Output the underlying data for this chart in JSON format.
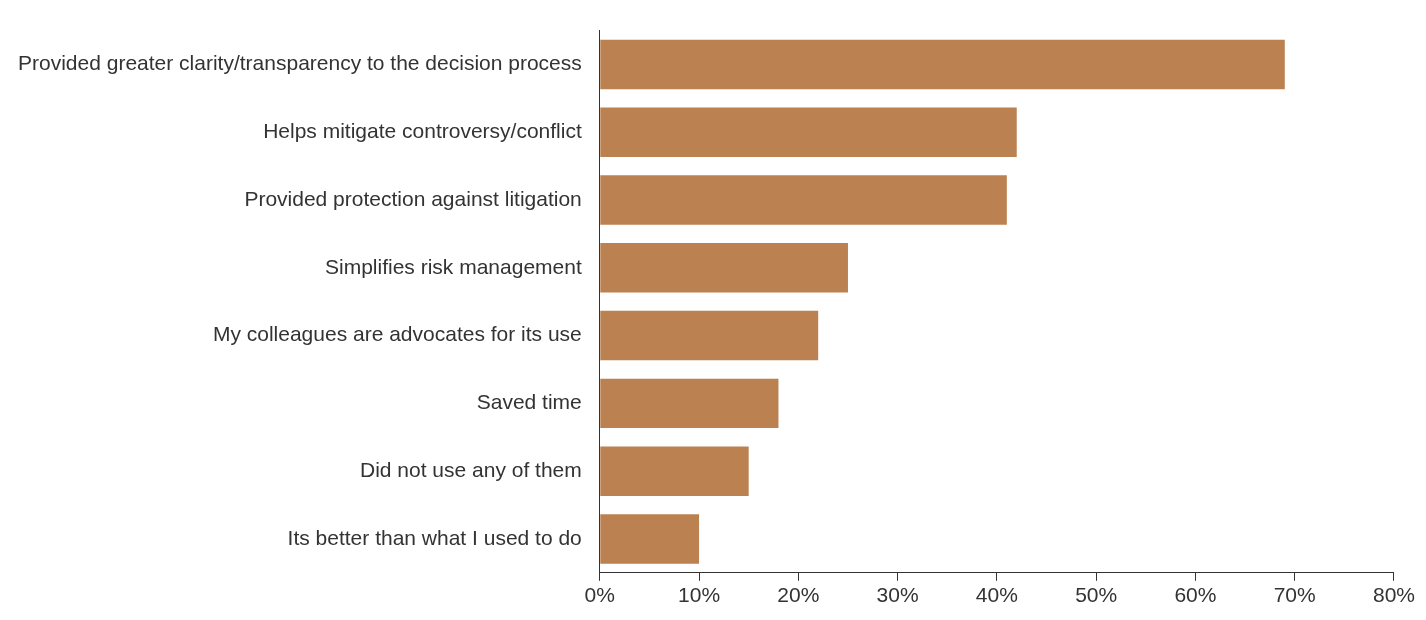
{
  "chart_data": {
    "type": "bar",
    "orientation": "horizontal",
    "categories": [
      "Provided greater clarity/transparency to the decision process",
      "Helps mitigate controversy/conflict",
      "Provided protection against litigation",
      "Simplifies risk management",
      "My colleagues are advocates for its use",
      "Saved time",
      "Did not use any of them",
      "Its better than what I used to do"
    ],
    "values": [
      69,
      42,
      41,
      25,
      22,
      18,
      15,
      10
    ],
    "color": "#bc8150",
    "xlim": [
      0,
      80
    ],
    "xticks": [
      {
        "value": 0,
        "label": "0%"
      },
      {
        "value": 10,
        "label": "10%"
      },
      {
        "value": 20,
        "label": "20%"
      },
      {
        "value": 30,
        "label": "30%"
      },
      {
        "value": 40,
        "label": "40%"
      },
      {
        "value": 50,
        "label": "50%"
      },
      {
        "value": 60,
        "label": "60%"
      },
      {
        "value": 70,
        "label": "70%"
      },
      {
        "value": 80,
        "label": "80%"
      }
    ],
    "grid": false,
    "legend": false
  }
}
